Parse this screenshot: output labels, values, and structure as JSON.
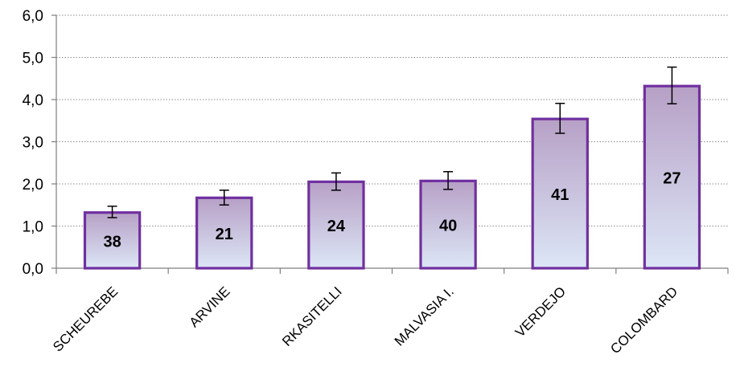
{
  "chart_data": {
    "type": "bar",
    "categories": [
      "SCHEUREBE",
      "ARVINE",
      "RKASITELLI",
      "MALVASIA I.",
      "VERDEJO",
      "COLOMBARD"
    ],
    "values": [
      1.32,
      1.67,
      2.05,
      2.07,
      3.54,
      4.32
    ],
    "error_low": [
      1.2,
      1.5,
      1.85,
      1.87,
      3.2,
      3.9
    ],
    "error_high": [
      1.47,
      1.85,
      2.26,
      2.29,
      3.91,
      4.77
    ],
    "bar_labels": [
      "38",
      "21",
      "24",
      "40",
      "41",
      "27"
    ],
    "yticks": [
      "0,0",
      "1,0",
      "2,0",
      "3,0",
      "4,0",
      "5,0",
      "6,0"
    ],
    "ylim": [
      0,
      6
    ],
    "grid": true,
    "colors": {
      "bar_border": "#7030a0",
      "bar_gradient_top": "#b7a0c6",
      "bar_gradient_bottom": "#dce6f6",
      "grid": "#8c8c8c",
      "axis": "#7f7f7f"
    }
  }
}
